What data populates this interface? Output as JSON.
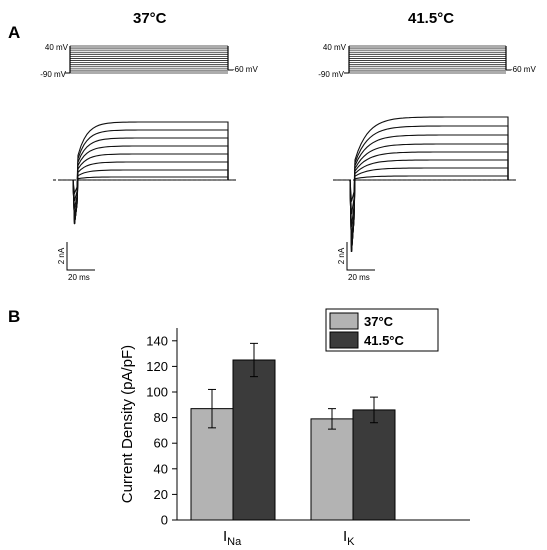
{
  "panel_a": {
    "letter": "A",
    "left": {
      "title": "37°C",
      "voltage_top": "40 mV",
      "voltage_bottom": "-90 mV",
      "voltage_hold": "-60 mV",
      "scale_y": "2 nA",
      "scale_x": "20 ms"
    },
    "right": {
      "title": "41.5°C",
      "voltage_top": "40 mV",
      "voltage_bottom": "-90 mV",
      "voltage_hold": "-60 mV",
      "scale_y": "2 nA",
      "scale_x": "20 ms"
    }
  },
  "panel_b": {
    "letter": "B"
  },
  "chart_data": {
    "type": "bar",
    "ylabel": "Current Density (pA/pF)",
    "ylim": [
      0,
      150
    ],
    "yticks": [
      "0",
      "20",
      "40",
      "60",
      "80",
      "100",
      "120",
      "140"
    ],
    "categories": [
      {
        "main": "I",
        "sub": "Na"
      },
      {
        "main": "I",
        "sub": "K"
      }
    ],
    "series": [
      {
        "name": "37°C",
        "color": "#b3b3b3",
        "values": [
          87,
          79
        ],
        "errors": [
          15,
          8
        ]
      },
      {
        "name": "41.5°C",
        "color": "#3b3b3b",
        "values": [
          125,
          86
        ],
        "errors": [
          13,
          10
        ]
      }
    ],
    "legend_position": "top-right",
    "grid": false
  }
}
